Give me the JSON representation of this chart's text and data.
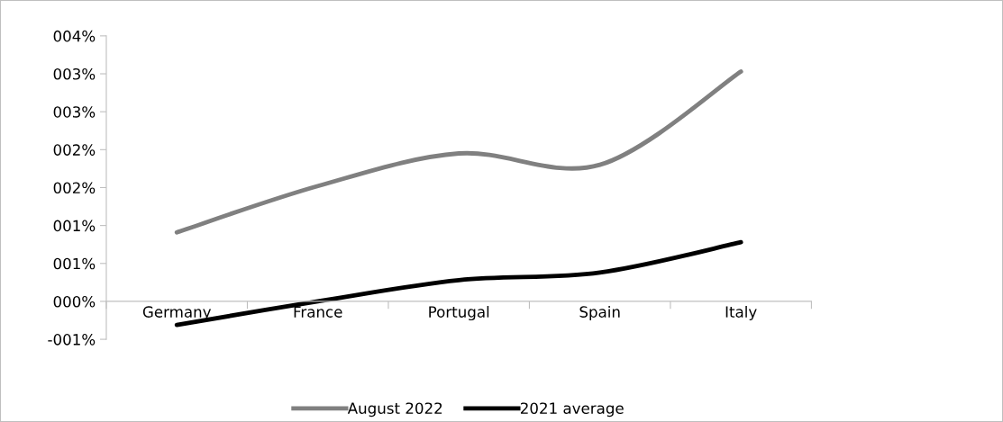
{
  "chart_data": {
    "type": "line",
    "categories": [
      "Germany",
      "France",
      "Portugal",
      "Spain",
      "Italy"
    ],
    "series": [
      {
        "name": "August 2022",
        "color": "#808080",
        "values": [
          0.91,
          1.52,
          1.95,
          1.8,
          3.03
        ]
      },
      {
        "name": "2021 average",
        "color": "#000000",
        "values": [
          -0.31,
          0.0,
          0.28,
          0.38,
          0.78
        ]
      }
    ],
    "ylim": [
      -0.5,
      3.5
    ],
    "yticks": [
      {
        "value": -0.5,
        "label": "-001%"
      },
      {
        "value": 0,
        "label": "000%"
      },
      {
        "value": 0.5,
        "label": "001%"
      },
      {
        "value": 1,
        "label": "001%"
      },
      {
        "value": 1.5,
        "label": "002%"
      },
      {
        "value": 2,
        "label": "002%"
      },
      {
        "value": 2.5,
        "label": "003%"
      },
      {
        "value": 3,
        "label": "003%"
      },
      {
        "value": 3.5,
        "label": "004%"
      }
    ],
    "legend": "bottom",
    "marker": "none",
    "line_style": "solid",
    "grid": false
  }
}
